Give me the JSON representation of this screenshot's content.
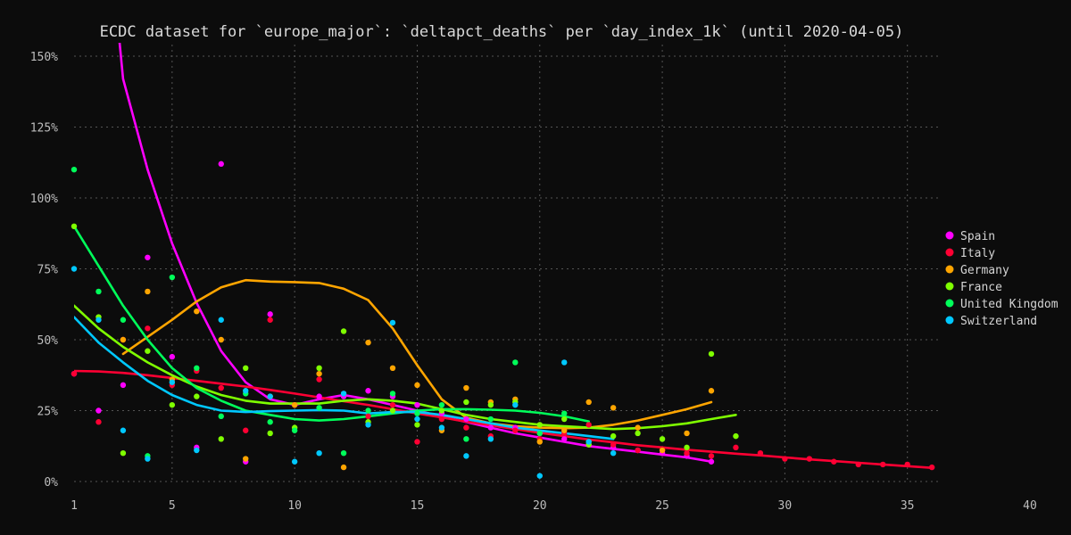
{
  "chart_data": {
    "type": "line",
    "title": "ECDC dataset for `europe_major`: `deltapct_deaths` per `day_index_1k` (until 2020-04-05)",
    "xlabel": "",
    "ylabel": "",
    "xlim": [
      1,
      40
    ],
    "ylim": [
      0,
      150
    ],
    "x_ticks": [
      1,
      5,
      10,
      15,
      20,
      25,
      30,
      35,
      40
    ],
    "y_ticks": [
      0,
      25,
      50,
      75,
      100,
      125,
      150
    ],
    "y_tick_labels": [
      "0%",
      "25%",
      "50%",
      "75%",
      "100%",
      "125%",
      "150%"
    ],
    "grid": true,
    "legend_position": "right",
    "series": [
      {
        "name": "Spain",
        "color": "#ff00ff",
        "points": [
          [
            1,
            38
          ],
          [
            2,
            25
          ],
          [
            3,
            34
          ],
          [
            4,
            79
          ],
          [
            5,
            44
          ],
          [
            6,
            12
          ],
          [
            7,
            112
          ],
          [
            8,
            7
          ],
          [
            9,
            59
          ],
          [
            10,
            27
          ],
          [
            11,
            30
          ],
          [
            12,
            30
          ],
          [
            13,
            32
          ],
          [
            14,
            30
          ],
          [
            15,
            27
          ],
          [
            16,
            24
          ],
          [
            17,
            22
          ],
          [
            18,
            19
          ],
          [
            19,
            19
          ],
          [
            20,
            17
          ],
          [
            21,
            15
          ],
          [
            22,
            13
          ],
          [
            23,
            12
          ],
          [
            24,
            11
          ],
          [
            25,
            10
          ],
          [
            26,
            9
          ],
          [
            27,
            7
          ]
        ],
        "trend": [
          [
            2.8,
            160
          ],
          [
            3,
            142
          ],
          [
            4,
            110
          ],
          [
            5,
            84
          ],
          [
            6,
            63
          ],
          [
            7,
            46
          ],
          [
            8,
            35
          ],
          [
            9,
            29
          ],
          [
            10,
            27
          ],
          [
            11,
            29
          ],
          [
            12,
            30.5
          ],
          [
            13,
            29
          ],
          [
            14,
            27
          ],
          [
            15,
            25
          ],
          [
            16,
            23
          ],
          [
            17,
            21
          ],
          [
            18,
            19
          ],
          [
            19,
            17
          ],
          [
            20,
            15.5
          ],
          [
            21,
            14
          ],
          [
            22,
            12.5
          ],
          [
            23,
            11.5
          ],
          [
            24,
            10.5
          ],
          [
            25,
            9.5
          ],
          [
            26,
            8.5
          ],
          [
            27,
            7
          ]
        ]
      },
      {
        "name": "Italy",
        "color": "#ff0033",
        "points": [
          [
            1,
            38
          ],
          [
            2,
            21
          ],
          [
            3,
            50
          ],
          [
            4,
            54
          ],
          [
            5,
            34
          ],
          [
            6,
            39
          ],
          [
            7,
            33
          ],
          [
            8,
            18
          ],
          [
            9,
            57
          ],
          [
            10,
            27
          ],
          [
            11,
            36
          ],
          [
            12,
            31
          ],
          [
            13,
            23
          ],
          [
            14,
            27
          ],
          [
            15,
            14
          ],
          [
            16,
            22
          ],
          [
            17,
            19
          ],
          [
            18,
            16
          ],
          [
            19,
            18
          ],
          [
            20,
            15
          ],
          [
            21,
            17
          ],
          [
            22,
            20
          ],
          [
            23,
            13
          ],
          [
            24,
            11
          ],
          [
            25,
            11
          ],
          [
            26,
            10
          ],
          [
            27,
            9
          ],
          [
            28,
            12
          ],
          [
            29,
            10
          ],
          [
            30,
            8
          ],
          [
            31,
            8
          ],
          [
            32,
            7
          ],
          [
            33,
            6
          ],
          [
            34,
            6
          ],
          [
            35,
            6
          ],
          [
            36,
            5
          ]
        ],
        "trend": [
          [
            1,
            39
          ],
          [
            2,
            38.8
          ],
          [
            3,
            38.3
          ],
          [
            4,
            37.5
          ],
          [
            5,
            36.5
          ],
          [
            6,
            35.5
          ],
          [
            7,
            34.5
          ],
          [
            8,
            33.5
          ],
          [
            9,
            32.3
          ],
          [
            10,
            31
          ],
          [
            11,
            29.7
          ],
          [
            12,
            28.3
          ],
          [
            13,
            27
          ],
          [
            14,
            25.5
          ],
          [
            15,
            24
          ],
          [
            16,
            22.6
          ],
          [
            17,
            21.1
          ],
          [
            18,
            19.8
          ],
          [
            19,
            18.5
          ],
          [
            20,
            17.2
          ],
          [
            21,
            16
          ],
          [
            22,
            14.8
          ],
          [
            23,
            13.8
          ],
          [
            24,
            12.8
          ],
          [
            25,
            12
          ],
          [
            26,
            11.2
          ],
          [
            27,
            10.5
          ],
          [
            28,
            9.8
          ],
          [
            29,
            9.2
          ],
          [
            30,
            8.5
          ],
          [
            31,
            7.8
          ],
          [
            32,
            7.2
          ],
          [
            33,
            6.6
          ],
          [
            34,
            6
          ],
          [
            35,
            5.4
          ],
          [
            36,
            4.8
          ]
        ]
      },
      {
        "name": "Germany",
        "color": "#ffa500",
        "points": [
          [
            3,
            50
          ],
          [
            4,
            67
          ],
          [
            5,
            36
          ],
          [
            6,
            60
          ],
          [
            7,
            50
          ],
          [
            8,
            8
          ],
          [
            9,
            30
          ],
          [
            10,
            27
          ],
          [
            11,
            38
          ],
          [
            12,
            5
          ],
          [
            13,
            49
          ],
          [
            14,
            40
          ],
          [
            15,
            34
          ],
          [
            16,
            18
          ],
          [
            17,
            33
          ],
          [
            18,
            28
          ],
          [
            19,
            29
          ],
          [
            20,
            14
          ],
          [
            21,
            18
          ],
          [
            22,
            28
          ],
          [
            23,
            26
          ],
          [
            24,
            19
          ],
          [
            25,
            11
          ],
          [
            26,
            17
          ],
          [
            27,
            32
          ]
        ],
        "trend": [
          [
            3,
            45
          ],
          [
            4,
            51
          ],
          [
            5,
            57
          ],
          [
            6,
            63.5
          ],
          [
            7,
            68.5
          ],
          [
            8,
            71
          ],
          [
            9,
            70.5
          ],
          [
            10,
            70.3
          ],
          [
            11,
            70
          ],
          [
            12,
            68
          ],
          [
            13,
            64
          ],
          [
            14,
            54
          ],
          [
            15,
            41
          ],
          [
            16,
            29
          ],
          [
            17,
            22.5
          ],
          [
            18,
            20.5
          ],
          [
            19,
            19.5
          ],
          [
            20,
            19
          ],
          [
            21,
            18.8
          ],
          [
            22,
            19
          ],
          [
            23,
            20
          ],
          [
            24,
            21.5
          ],
          [
            25,
            23.5
          ],
          [
            26,
            25.5
          ],
          [
            27,
            28
          ]
        ]
      },
      {
        "name": "France",
        "color": "#7fff00",
        "points": [
          [
            1,
            90
          ],
          [
            2,
            58
          ],
          [
            3,
            10
          ],
          [
            4,
            46
          ],
          [
            5,
            27
          ],
          [
            6,
            30
          ],
          [
            7,
            15
          ],
          [
            8,
            40
          ],
          [
            9,
            17
          ],
          [
            10,
            19
          ],
          [
            11,
            40
          ],
          [
            12,
            53
          ],
          [
            13,
            21
          ],
          [
            14,
            25
          ],
          [
            15,
            20
          ],
          [
            16,
            25
          ],
          [
            17,
            28
          ],
          [
            18,
            27
          ],
          [
            19,
            28
          ],
          [
            20,
            20
          ],
          [
            21,
            22
          ],
          [
            22,
            13
          ],
          [
            23,
            16
          ],
          [
            24,
            17
          ],
          [
            25,
            15
          ],
          [
            26,
            12
          ],
          [
            27,
            45
          ],
          [
            28,
            16
          ]
        ],
        "trend": [
          [
            1,
            62
          ],
          [
            2,
            54
          ],
          [
            3,
            47.5
          ],
          [
            4,
            42
          ],
          [
            5,
            37.5
          ],
          [
            6,
            33.5
          ],
          [
            7,
            30.5
          ],
          [
            8,
            28.5
          ],
          [
            9,
            27.5
          ],
          [
            10,
            27.5
          ],
          [
            11,
            27.5
          ],
          [
            12,
            28.5
          ],
          [
            13,
            29
          ],
          [
            14,
            28.5
          ],
          [
            15,
            27.5
          ],
          [
            16,
            25.5
          ],
          [
            17,
            23.5
          ],
          [
            18,
            22
          ],
          [
            19,
            21
          ],
          [
            20,
            20
          ],
          [
            21,
            19.5
          ],
          [
            22,
            19
          ],
          [
            23,
            18.5
          ],
          [
            24,
            18.8
          ],
          [
            25,
            19.5
          ],
          [
            26,
            20.5
          ],
          [
            27,
            22
          ],
          [
            28,
            23.5
          ]
        ]
      },
      {
        "name": "United Kingdom",
        "color": "#00ff5a",
        "points": [
          [
            1,
            110
          ],
          [
            2,
            67
          ],
          [
            3,
            57
          ],
          [
            4,
            9
          ],
          [
            5,
            72
          ],
          [
            6,
            40
          ],
          [
            7,
            23
          ],
          [
            8,
            31
          ],
          [
            9,
            21
          ],
          [
            10,
            18
          ],
          [
            11,
            26
          ],
          [
            12,
            10
          ],
          [
            13,
            25
          ],
          [
            14,
            31
          ],
          [
            15,
            24
          ],
          [
            16,
            27
          ],
          [
            17,
            15
          ],
          [
            18,
            22
          ],
          [
            19,
            42
          ],
          [
            20,
            17
          ],
          [
            21,
            24
          ],
          [
            22,
            14
          ]
        ],
        "trend": [
          [
            1,
            90
          ],
          [
            2,
            76
          ],
          [
            3,
            62
          ],
          [
            4,
            50
          ],
          [
            5,
            40
          ],
          [
            6,
            33
          ],
          [
            7,
            28.5
          ],
          [
            8,
            25
          ],
          [
            9,
            23.5
          ],
          [
            10,
            22
          ],
          [
            11,
            21.5
          ],
          [
            12,
            22
          ],
          [
            13,
            23
          ],
          [
            14,
            24
          ],
          [
            15,
            25
          ],
          [
            16,
            25.5
          ],
          [
            17,
            25.5
          ],
          [
            18,
            25.3
          ],
          [
            19,
            25
          ],
          [
            20,
            24.2
          ],
          [
            21,
            23
          ],
          [
            22,
            21.2
          ]
        ]
      },
      {
        "name": "Switzerland",
        "color": "#00c8ff",
        "points": [
          [
            1,
            75
          ],
          [
            2,
            57
          ],
          [
            3,
            18
          ],
          [
            4,
            8
          ],
          [
            5,
            35
          ],
          [
            6,
            11
          ],
          [
            7,
            57
          ],
          [
            8,
            32
          ],
          [
            9,
            30
          ],
          [
            10,
            7
          ],
          [
            11,
            10
          ],
          [
            12,
            31
          ],
          [
            13,
            20
          ],
          [
            14,
            56
          ],
          [
            15,
            22
          ],
          [
            16,
            19
          ],
          [
            17,
            9
          ],
          [
            18,
            15
          ],
          [
            19,
            27
          ],
          [
            20,
            2
          ],
          [
            21,
            42
          ],
          [
            22,
            14
          ],
          [
            23,
            10
          ]
        ],
        "trend": [
          [
            1,
            58
          ],
          [
            2,
            49
          ],
          [
            3,
            42
          ],
          [
            4,
            35.5
          ],
          [
            5,
            30.5
          ],
          [
            6,
            27
          ],
          [
            7,
            25
          ],
          [
            8,
            24.5
          ],
          [
            9,
            24.8
          ],
          [
            10,
            25
          ],
          [
            11,
            25.2
          ],
          [
            12,
            25
          ],
          [
            13,
            24
          ],
          [
            14,
            24.5
          ],
          [
            15,
            24.5
          ],
          [
            16,
            23.5
          ],
          [
            17,
            22
          ],
          [
            18,
            20.5
          ],
          [
            19,
            19
          ],
          [
            20,
            18
          ],
          [
            21,
            17
          ],
          [
            22,
            16
          ],
          [
            23,
            15
          ]
        ]
      }
    ]
  }
}
